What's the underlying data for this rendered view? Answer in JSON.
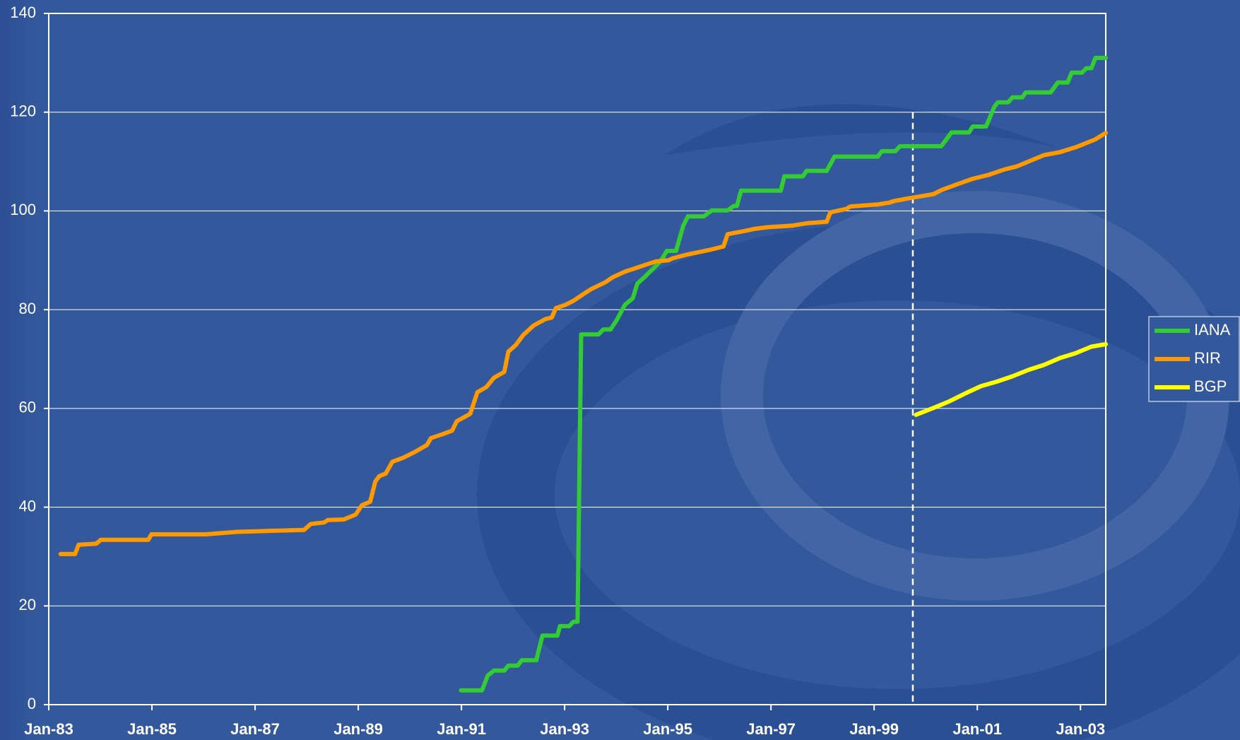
{
  "chart_data": {
    "type": "line",
    "xlim": [
      1983,
      2003.49
    ],
    "xticks": [
      {
        "value": 1983,
        "label": "Jan-83"
      },
      {
        "value": 1985,
        "label": "Jan-85"
      },
      {
        "value": 1987,
        "label": "Jan-87"
      },
      {
        "value": 1989,
        "label": "Jan-89"
      },
      {
        "value": 1991,
        "label": "Jan-91"
      },
      {
        "value": 1993,
        "label": "Jan-93"
      },
      {
        "value": 1995,
        "label": "Jan-95"
      },
      {
        "value": 1997,
        "label": "Jan-97"
      },
      {
        "value": 1999,
        "label": "Jan-99"
      },
      {
        "value": 2001,
        "label": "Jan-01"
      },
      {
        "value": 2003,
        "label": "Jan-03"
      }
    ],
    "ylim": [
      0,
      140
    ],
    "yticks": [
      0,
      20,
      40,
      60,
      80,
      100,
      120,
      140
    ],
    "grid": true,
    "legend": "right",
    "vline_x": 1999.75,
    "series": [
      {
        "name": "IANA",
        "color": "#33cc33",
        "x": [
          1990.99,
          1991.4,
          1991.51,
          1991.63,
          1991.83,
          1991.91,
          1992.09,
          1992.17,
          1992.45,
          1992.57,
          1992.86,
          1992.91,
          1993.09,
          1993.17,
          1993.25,
          1993.32,
          1993.66,
          1993.75,
          1993.89,
          1994.01,
          1994.17,
          1994.32,
          1994.41,
          1994.55,
          1994.86,
          1994.98,
          1995.16,
          1995.3,
          1995.39,
          1995.7,
          1995.85,
          1996.16,
          1996.28,
          1996.34,
          1996.42,
          1997.19,
          1997.26,
          1997.62,
          1997.69,
          1998.08,
          1998.23,
          1999.07,
          1999.15,
          1999.41,
          1999.5,
          2000.3,
          2000.5,
          2000.84,
          2000.91,
          2001.17,
          2001.33,
          2001.4,
          2001.6,
          2001.68,
          2001.87,
          2001.94,
          2002.42,
          2002.56,
          2002.75,
          2002.83,
          2003.03,
          2003.11,
          2003.21,
          2003.29,
          2003.49
        ],
        "values": [
          2.9,
          2.9,
          5.9,
          6.9,
          6.9,
          7.9,
          7.9,
          9.0,
          9.0,
          14.0,
          14.0,
          15.9,
          15.9,
          16.8,
          16.8,
          75.0,
          75.0,
          76.0,
          76.0,
          77.9,
          81.0,
          82.3,
          85.3,
          86.6,
          89.8,
          91.9,
          91.9,
          97.0,
          98.9,
          98.9,
          100.1,
          100.1,
          101.0,
          101.0,
          104.1,
          104.1,
          107.0,
          107.0,
          108.1,
          108.1,
          111.0,
          111.0,
          112.1,
          112.1,
          113.1,
          113.1,
          115.9,
          115.9,
          117.1,
          117.1,
          121.1,
          122.0,
          122.0,
          123.0,
          123.0,
          124.0,
          124.0,
          126.0,
          126.0,
          128.0,
          128.0,
          128.9,
          128.9,
          131.0,
          131.0
        ]
      },
      {
        "name": "RIR",
        "color": "#ff9900",
        "x": [
          1983.23,
          1983.51,
          1983.58,
          1983.92,
          1984.01,
          1984.93,
          1984.99,
          1986.04,
          1986.65,
          1987.95,
          1988.08,
          1988.34,
          1988.41,
          1988.72,
          1988.95,
          1989.07,
          1989.23,
          1989.33,
          1989.41,
          1989.53,
          1989.66,
          1989.87,
          1990.1,
          1990.33,
          1990.41,
          1990.64,
          1990.82,
          1990.91,
          1991.17,
          1991.31,
          1991.48,
          1991.63,
          1991.83,
          1991.91,
          1992.05,
          1992.2,
          1992.4,
          1992.63,
          1992.75,
          1992.83,
          1993.02,
          1993.17,
          1993.4,
          1993.52,
          1993.78,
          1993.94,
          1994.17,
          1994.4,
          1994.63,
          1994.78,
          1995.01,
          1995.09,
          1995.39,
          1995.62,
          1995.85,
          1996.08,
          1996.16,
          1996.47,
          1996.7,
          1996.93,
          1997.39,
          1997.69,
          1998.08,
          1998.15,
          1998.46,
          1998.54,
          1999.07,
          1999.3,
          1999.38,
          1999.69,
          2000.15,
          2000.3,
          2000.61,
          2000.91,
          2001.22,
          2001.53,
          2001.76,
          2002.06,
          2002.29,
          2002.6,
          2002.91,
          2003.29,
          2003.49
        ],
        "values": [
          30.5,
          30.5,
          32.4,
          32.6,
          33.4,
          33.4,
          34.5,
          34.5,
          35.0,
          35.4,
          36.6,
          36.9,
          37.4,
          37.5,
          38.5,
          40.4,
          41.1,
          45.2,
          46.3,
          46.8,
          49.2,
          50.0,
          51.2,
          52.6,
          54.0,
          54.8,
          55.5,
          57.4,
          58.9,
          63.3,
          64.3,
          66.2,
          67.4,
          71.5,
          72.8,
          74.9,
          76.8,
          78.1,
          78.4,
          80.3,
          81.0,
          81.8,
          83.4,
          84.2,
          85.5,
          86.6,
          87.7,
          88.5,
          89.3,
          89.8,
          90.0,
          90.4,
          91.2,
          91.7,
          92.2,
          92.8,
          95.3,
          95.9,
          96.4,
          96.7,
          97.0,
          97.5,
          97.8,
          99.7,
          100.4,
          100.9,
          101.3,
          101.7,
          102.0,
          102.6,
          103.4,
          104.2,
          105.4,
          106.5,
          107.3,
          108.4,
          109.0,
          110.3,
          111.3,
          111.9,
          112.9,
          114.5,
          115.8
        ]
      },
      {
        "name": "BGP",
        "color": "#ffff00",
        "x": [
          1999.81,
          2000.15,
          2000.45,
          2000.76,
          2001.07,
          2001.37,
          2001.68,
          2001.99,
          2002.29,
          2002.6,
          2002.91,
          2003.21,
          2003.49
        ],
        "values": [
          58.7,
          60.1,
          61.4,
          63.0,
          64.5,
          65.4,
          66.5,
          67.8,
          68.8,
          70.2,
          71.2,
          72.5,
          73.0
        ]
      }
    ]
  }
}
